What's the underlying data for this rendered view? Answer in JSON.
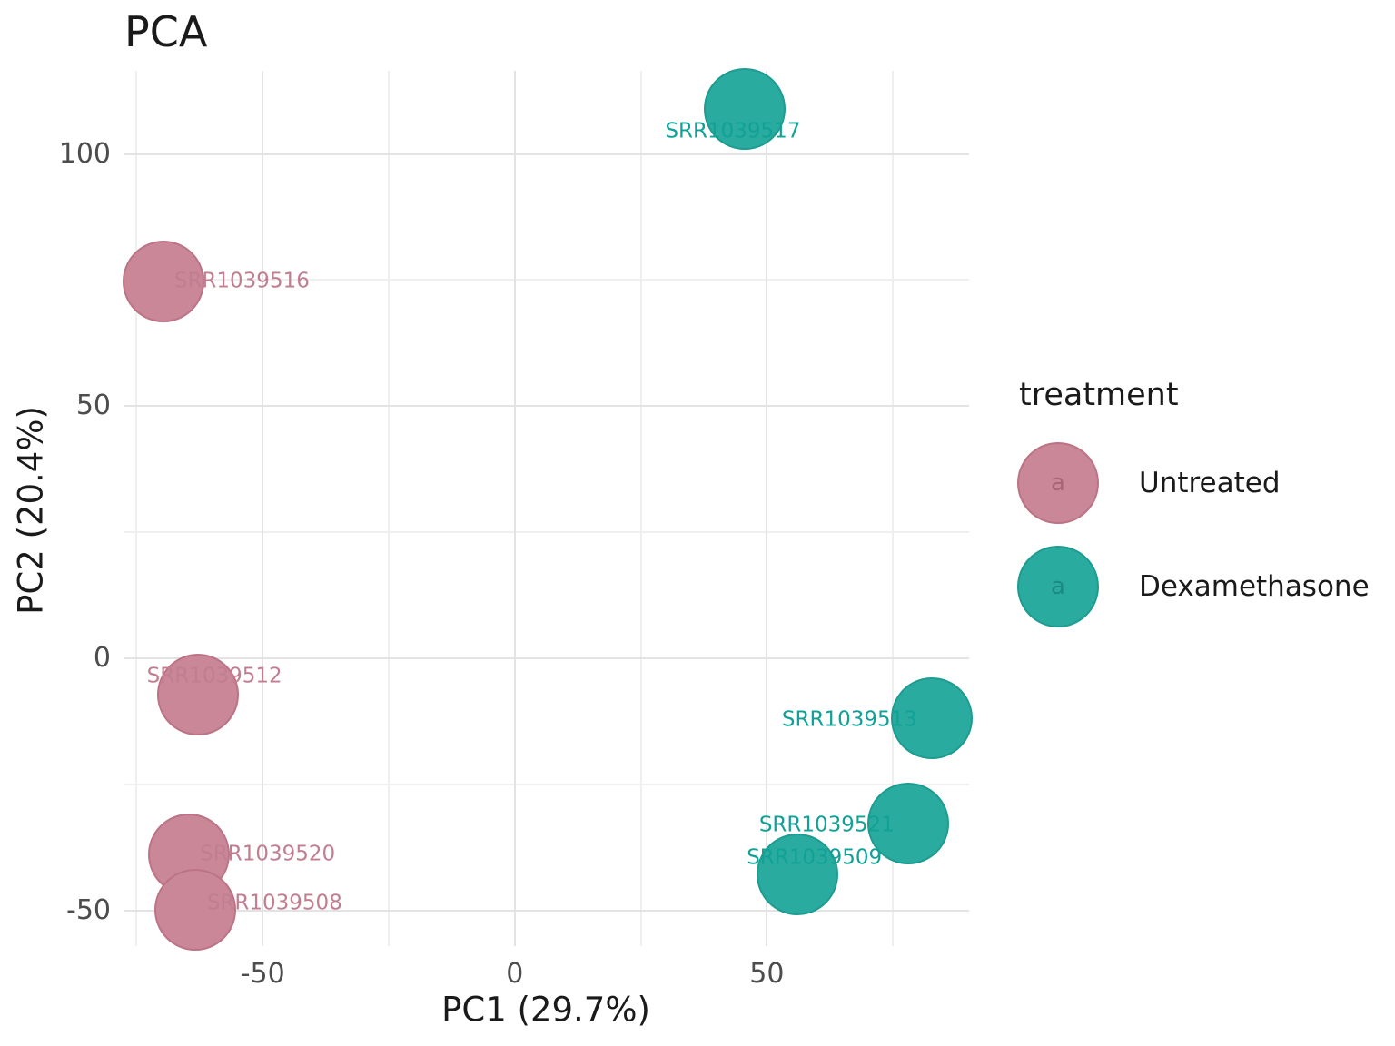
{
  "title": "PCA",
  "axes": {
    "x": {
      "title": "PC1 (29.7%)",
      "ticks": [
        -50,
        0,
        50
      ],
      "minor_ticks": [
        -75,
        -25,
        25,
        75
      ],
      "lim": [
        -77.6,
        90.1
      ]
    },
    "y": {
      "title": "PC2 (20.4%)",
      "ticks": [
        100,
        50,
        0,
        -50
      ],
      "minor_ticks": [
        75,
        25,
        -25
      ],
      "lim": [
        -57.1,
        116.5
      ]
    }
  },
  "legend": {
    "title": "treatment",
    "position": "right",
    "items": [
      {
        "label": "Untreated",
        "glyph": "a",
        "fill": "#C98798",
        "stroke": "#BC7386",
        "glyph_color": "#8F4A5E"
      },
      {
        "label": "Dexamethasone",
        "glyph": "a",
        "fill": "#2AABA0",
        "stroke": "#1E9C90",
        "glyph_color": "#0E6F66"
      }
    ]
  },
  "colors": {
    "untreated_fill": "#C98798",
    "untreated_stroke": "#BC7386",
    "untreated_text": "#C17E90",
    "dexamethasone_fill": "#2AABA0",
    "dexamethasone_stroke": "#1E9C90",
    "dexamethasone_text": "#12A196",
    "grid_major": "#E3E3E3",
    "grid_minor": "#EFEFEF",
    "tick_text": "#4D4D4D"
  },
  "chart_data": {
    "type": "scatter",
    "title": "PCA",
    "xlabel": "PC1 (29.7%)",
    "ylabel": "PC2 (20.4%)",
    "xlim": [
      -77.6,
      90.1
    ],
    "ylim": [
      -57.1,
      116.5
    ],
    "grid": "on",
    "legend_position": "right",
    "series": [
      {
        "name": "Untreated",
        "fill": "#C98798",
        "stroke": "#BC7386",
        "label_color": "#C17E90",
        "points": [
          {
            "id": "SRR1039516",
            "pc1": -69.7,
            "pc2": 74.7,
            "anchor": "start",
            "label_dx": 12,
            "label_dy": 0
          },
          {
            "id": "SRR1039512",
            "pc1": -62.8,
            "pc2": -7.2,
            "anchor": "middle",
            "label_dx": 18,
            "label_dy": -20
          },
          {
            "id": "SRR1039520",
            "pc1": -64.6,
            "pc2": -38.9,
            "anchor": "start",
            "label_dx": 12,
            "label_dy": 0
          },
          {
            "id": "SRR1039508",
            "pc1": -63.4,
            "pc2": -49.9,
            "anchor": "start",
            "label_dx": 13,
            "label_dy": -7
          }
        ]
      },
      {
        "name": "Dexamethasone",
        "fill": "#2AABA0",
        "stroke": "#1E9C90",
        "label_color": "#12A196",
        "points": [
          {
            "id": "SRR1039517",
            "pc1": 45.6,
            "pc2": 108.9,
            "anchor": "middle",
            "label_dx": -13,
            "label_dy": 25
          },
          {
            "id": "SRR1039513",
            "pc1": 82.7,
            "pc2": -11.9,
            "anchor": "end",
            "label_dx": -16,
            "label_dy": 2
          },
          {
            "id": "SRR1039521",
            "pc1": 78.0,
            "pc2": -32.8,
            "anchor": "end",
            "label_dx": -15,
            "label_dy": 2
          },
          {
            "id": "SRR1039509",
            "pc1": 56.0,
            "pc2": -42.9,
            "anchor": "middle",
            "label_dx": 19,
            "label_dy": -18
          }
        ]
      }
    ]
  }
}
